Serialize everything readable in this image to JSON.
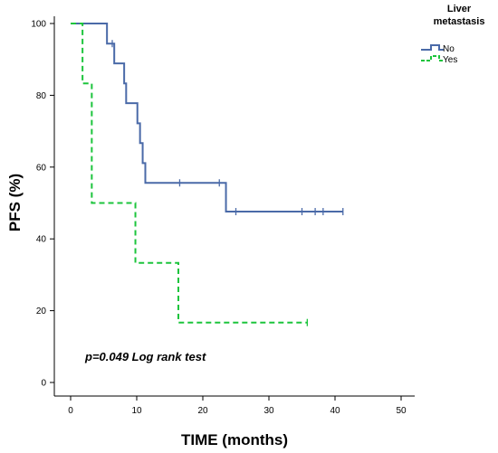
{
  "chart_data": {
    "type": "line",
    "subtype": "kaplan-meier step",
    "xlabel": "TIME (months)",
    "ylabel": "PFS (%)",
    "xlim": [
      0,
      50
    ],
    "ylim": [
      0,
      100
    ],
    "xticks": [
      0,
      10,
      20,
      30,
      40,
      50
    ],
    "yticks": [
      0,
      20,
      40,
      60,
      80,
      100
    ],
    "grid": false,
    "legend": {
      "title_lines": [
        "Liver",
        "metastasis"
      ],
      "placement": "top-right"
    },
    "annotation": "p=0.049 Log rank test",
    "series": [
      {
        "name": "No",
        "color": "#4a6aa8",
        "dash": "solid",
        "steps": [
          [
            0,
            100
          ],
          [
            5.5,
            94.4
          ],
          [
            6.6,
            88.9
          ],
          [
            8.1,
            83.3
          ],
          [
            8.4,
            77.8
          ],
          [
            10.1,
            72.2
          ],
          [
            10.5,
            66.7
          ],
          [
            10.9,
            61.1
          ],
          [
            11.3,
            55.6
          ],
          [
            23.5,
            47.6
          ],
          [
            41.2,
            47.6
          ]
        ],
        "censored": [
          [
            6.3,
            94.4
          ],
          [
            22.5,
            55.6
          ],
          [
            16.5,
            55.6
          ],
          [
            25.0,
            47.6
          ],
          [
            35.0,
            47.6
          ],
          [
            37.0,
            47.6
          ],
          [
            38.2,
            47.6
          ],
          [
            41.2,
            47.6
          ]
        ]
      },
      {
        "name": "Yes",
        "color": "#1cc43c",
        "dash": "dashed",
        "steps": [
          [
            0,
            100
          ],
          [
            1.8,
            83.3
          ],
          [
            3.2,
            50.0
          ],
          [
            9.8,
            33.3
          ],
          [
            16.3,
            16.7
          ],
          [
            35.8,
            16.7
          ]
        ],
        "censored": [
          [
            35.8,
            16.7
          ]
        ]
      }
    ]
  }
}
